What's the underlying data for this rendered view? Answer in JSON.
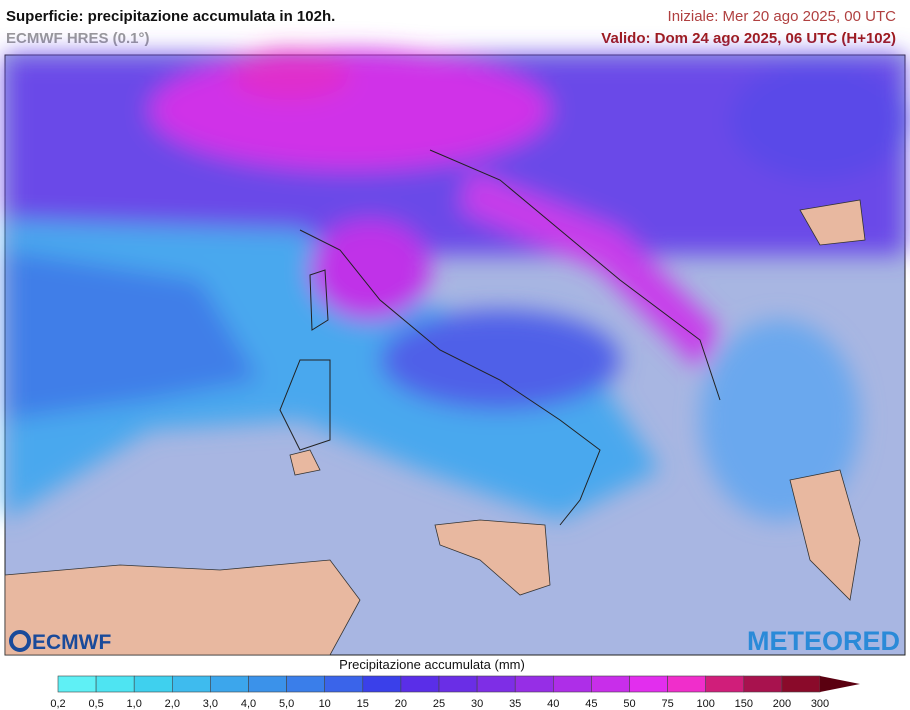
{
  "header": {
    "title": "Superficie: precipitazione accumulata in 102h.",
    "model": "ECMWF HRES (0.1°)",
    "init": "Iniziale: Mer 20 ago 2025, 00 UTC",
    "valid": "Valido: Dom 24 ago 2025, 06 UTC (H+102)"
  },
  "logos": {
    "left": "ECMWF",
    "right": "METEORED"
  },
  "legend": {
    "title": "Precipitazione accumulata (mm)",
    "labels": [
      "0,2",
      "0,5",
      "1,0",
      "2,0",
      "3,0",
      "4,0",
      "5,0",
      "10",
      "15",
      "20",
      "25",
      "30",
      "35",
      "40",
      "45",
      "50",
      "75",
      "100",
      "150",
      "200",
      "300"
    ],
    "colors": [
      "#5ff0f5",
      "#4ee4f2",
      "#3fd0ee",
      "#3ebbee",
      "#3ca6ec",
      "#3b92ea",
      "#3a7eea",
      "#3a64ea",
      "#3a40ea",
      "#5a2ee8",
      "#6a2ee6",
      "#7e2ee6",
      "#962ee6",
      "#ae2ee8",
      "#c82eea",
      "#e22eee",
      "#f02ecb",
      "#d01e7a",
      "#a8124e",
      "#8a0a2a"
    ],
    "arrow_color": "#5a0010"
  }
}
